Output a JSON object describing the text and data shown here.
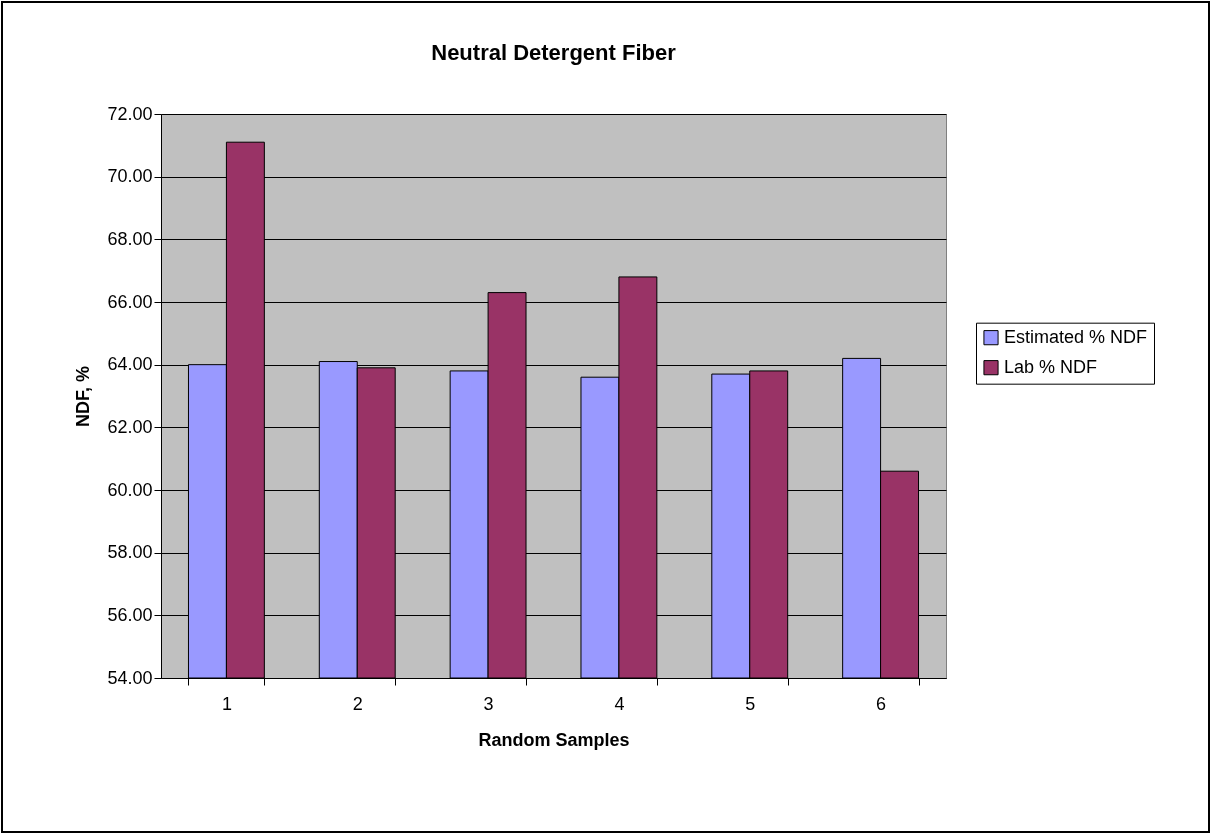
{
  "chart_data": {
    "type": "bar",
    "title": "Neutral Detergent Fiber",
    "xlabel": "Random Samples",
    "ylabel": "NDF, %",
    "categories": [
      "1",
      "2",
      "3",
      "4",
      "5",
      "6"
    ],
    "series": [
      {
        "name": "Estimated % NDF",
        "color": "#9999ff",
        "values": [
          64.0,
          64.1,
          63.8,
          63.6,
          63.7,
          64.2
        ]
      },
      {
        "name": "Lab % NDF",
        "color": "#993366",
        "values": [
          71.1,
          63.9,
          66.3,
          66.8,
          63.8,
          60.6
        ]
      }
    ],
    "ylim": [
      54,
      72
    ],
    "yticks": [
      {
        "value": 54,
        "label": "54.00"
      },
      {
        "value": 56,
        "label": "56.00"
      },
      {
        "value": 58,
        "label": "58.00"
      },
      {
        "value": 60,
        "label": "60.00"
      },
      {
        "value": 62,
        "label": "62.00"
      },
      {
        "value": 64,
        "label": "64.00"
      },
      {
        "value": 66,
        "label": "66.00"
      },
      {
        "value": 68,
        "label": "68.00"
      },
      {
        "value": 70,
        "label": "70.00"
      },
      {
        "value": 72,
        "label": "72.00"
      }
    ],
    "grid": "y",
    "legend": "right"
  }
}
